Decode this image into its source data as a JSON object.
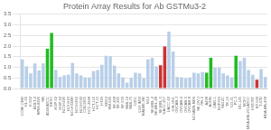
{
  "chart_data": {
    "type": "bar",
    "title": "Protein Array Results for Ab GSTMu3-2",
    "categories": [
      "CCRF-CEM",
      "HL-60",
      "K-562",
      "MOLT-4",
      "RPMI-8226",
      "SR",
      "A549/ATCC",
      "EKVX",
      "HOP-62",
      "HOP-92",
      "NCI-H226",
      "NCI-H23",
      "NCI-H322M",
      "NCI-H460",
      "NCI-H522",
      "COLO205",
      "HCC-2998",
      "HCT-116",
      "HCT-15",
      "HT29",
      "KM12",
      "SW-620",
      "SF-268",
      "SF-295",
      "SF-539",
      "SNB-19",
      "SNB-75",
      "U251",
      "LOX IMVI",
      "MALME-3M",
      "M14",
      "SK-MEL-2",
      "SK-MEL-28",
      "SK-MEL-5",
      "UACC-257",
      "UACC-62",
      "IGR-OV1",
      "OVCAR-3",
      "OVCAR-4",
      "OVCAR-5",
      "OVCAR-8",
      "NCI/ADR-RES",
      "SK-OV-3",
      "786-0",
      "A498",
      "ACHN",
      "CAKI-1",
      "RXF393",
      "SN12C",
      "TK-10",
      "UO-31",
      "PC-3",
      "DU-145",
      "MCF7",
      "MDA-MB-231/ATCC",
      "HS578T",
      "BT-549",
      "T-47D",
      "MDA-MB-468"
    ],
    "values": [
      1.38,
      1.05,
      0.72,
      1.18,
      0.85,
      1.18,
      1.88,
      2.62,
      0.88,
      0.55,
      0.62,
      0.65,
      1.2,
      0.72,
      0.62,
      0.52,
      0.52,
      0.82,
      0.88,
      1.12,
      1.55,
      1.52,
      1.08,
      0.72,
      0.52,
      0.28,
      0.5,
      0.75,
      0.72,
      0.48,
      1.38,
      1.45,
      1.05,
      1.1,
      1.98,
      2.68,
      1.75,
      0.55,
      0.52,
      0.48,
      0.52,
      0.75,
      0.72,
      0.78,
      0.75,
      1.45,
      0.98,
      0.98,
      0.72,
      0.62,
      0.52,
      1.55,
      1.3,
      1.45,
      0.88,
      0.65,
      0.42,
      0.92,
      0.55
    ],
    "colors": [
      "#b8cfe8",
      "#b8cfe8",
      "#b8cfe8",
      "#b8cfe8",
      "#b8cfe8",
      "#b8cfe8",
      "#22bb22",
      "#22bb22",
      "#b8cfe8",
      "#b8cfe8",
      "#b8cfe8",
      "#b8cfe8",
      "#b8cfe8",
      "#b8cfe8",
      "#b8cfe8",
      "#b8cfe8",
      "#b8cfe8",
      "#b8cfe8",
      "#b8cfe8",
      "#b8cfe8",
      "#b8cfe8",
      "#b8cfe8",
      "#b8cfe8",
      "#b8cfe8",
      "#b8cfe8",
      "#b8cfe8",
      "#b8cfe8",
      "#b8cfe8",
      "#b8cfe8",
      "#b8cfe8",
      "#b8cfe8",
      "#b8cfe8",
      "#b8cfe8",
      "#cc3333",
      "#cc3333",
      "#b8cfe8",
      "#b8cfe8",
      "#b8cfe8",
      "#b8cfe8",
      "#b8cfe8",
      "#b8cfe8",
      "#b8cfe8",
      "#b8cfe8",
      "#b8cfe8",
      "#22bb22",
      "#22bb22",
      "#b8cfe8",
      "#b8cfe8",
      "#b8cfe8",
      "#b8cfe8",
      "#b8cfe8",
      "#22bb22",
      "#b8cfe8",
      "#b8cfe8",
      "#b8cfe8",
      "#b8cfe8",
      "#cc3333",
      "#b8cfe8",
      "#b8cfe8"
    ],
    "ylim": [
      0,
      3.5
    ],
    "yticks": [
      {
        "value": 0,
        "label": "0.0"
      },
      0.5,
      {
        "value": 1,
        "label": "1.0"
      },
      1.5,
      {
        "value": 2,
        "label": "2.0"
      },
      2.5,
      {
        "value": 3,
        "label": "3.0"
      },
      3.5
    ],
    "grid": true
  }
}
